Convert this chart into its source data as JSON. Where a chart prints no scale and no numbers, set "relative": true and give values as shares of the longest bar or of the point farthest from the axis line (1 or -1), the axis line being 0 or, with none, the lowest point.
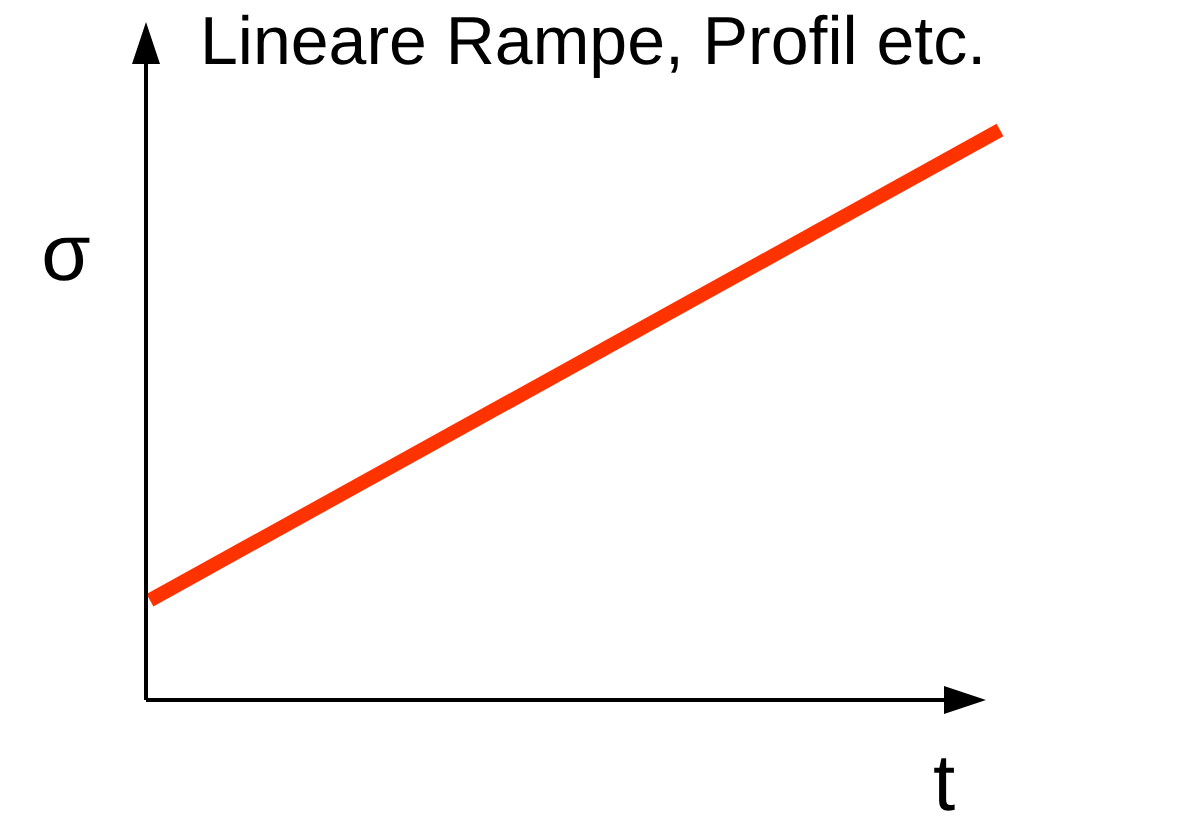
{
  "chart_data": {
    "type": "line",
    "title": "Lineare Rampe, Profil etc.",
    "xlabel": "t",
    "ylabel": "σ",
    "relative": true,
    "categories": [
      null,
      null
    ],
    "series": [
      {
        "color": "#ff3300",
        "values": [
          0.175,
          1
        ]
      }
    ],
    "marker": "none",
    "line_style": "solid"
  }
}
